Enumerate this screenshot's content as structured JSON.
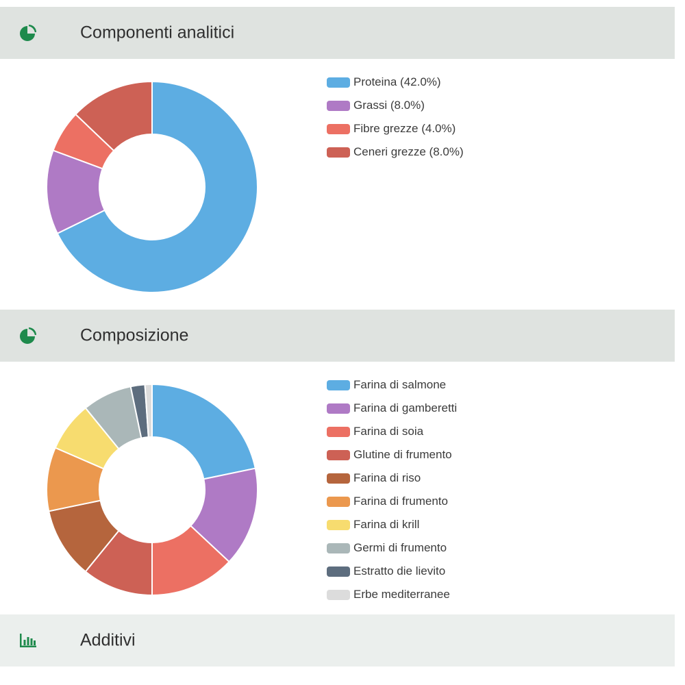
{
  "sections": [
    {
      "title": "Componenti analitici",
      "icon": "pie-chart-icon"
    },
    {
      "title": "Composizione",
      "icon": "pie-chart-icon"
    },
    {
      "title": "Additivi",
      "icon": "bar-chart-icon"
    }
  ],
  "colors": {
    "accent": "#1e8a4c"
  },
  "chart_data": [
    {
      "type": "pie",
      "subtype": "donut",
      "labels": [
        "Proteina (42.0%)",
        "Grassi (8.0%)",
        "Fibre grezze (4.0%)",
        "Ceneri grezze (8.0%)"
      ],
      "values": [
        42.0,
        8.0,
        4.0,
        8.0
      ],
      "colors": [
        "#5dade2",
        "#af7ac5",
        "#ec7063",
        "#cd6155"
      ],
      "legend": "right"
    },
    {
      "type": "pie",
      "subtype": "donut",
      "labels": [
        "Farina di salmone",
        "Farina di gamberetti",
        "Farina di soia",
        "Glutine di frumento",
        "Farina di riso",
        "Farina di frumento",
        "Farina di krill",
        "Germi di frumento",
        "Estratto die lievito",
        "Erbe mediterranee"
      ],
      "values": [
        20,
        14,
        12,
        10,
        10,
        9,
        7,
        7,
        2,
        1
      ],
      "colors": [
        "#5dade2",
        "#af7ac5",
        "#ec7063",
        "#cd6155",
        "#b5653d",
        "#eb984e",
        "#f7dc6f",
        "#aab7b8",
        "#5d6d7e",
        "#dcdcdc"
      ],
      "legend": "right"
    }
  ]
}
